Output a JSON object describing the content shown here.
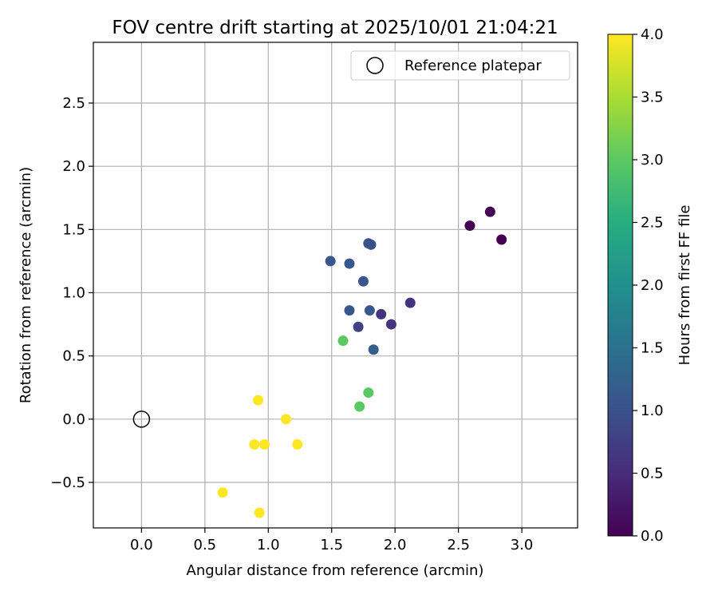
{
  "chart_data": {
    "type": "scatter",
    "title": "FOV centre drift starting at 2025/10/01 21:04:21",
    "xlabel": "Angular distance from reference (arcmin)",
    "ylabel": "Rotation from reference (arcmin)",
    "xlim": [
      -0.38,
      3.44
    ],
    "ylim": [
      -0.86,
      2.98
    ],
    "xticks": [
      0.0,
      0.5,
      1.0,
      1.5,
      2.0,
      2.5,
      3.0
    ],
    "xtick_labels": [
      "0.0",
      "0.5",
      "1.0",
      "1.5",
      "2.0",
      "2.5",
      "3.0"
    ],
    "yticks": [
      -0.5,
      0.0,
      0.5,
      1.0,
      1.5,
      2.0,
      2.5
    ],
    "ytick_labels": [
      "−0.5",
      "0.0",
      "0.5",
      "1.0",
      "1.5",
      "2.0",
      "2.5"
    ],
    "grid": true,
    "legend": {
      "position": "top-right",
      "entries": [
        {
          "label": "Reference platepar",
          "marker": "open-circle"
        }
      ]
    },
    "reference_point": {
      "x": 0.0,
      "y": 0.0
    },
    "colormap": "viridis",
    "colorbar": {
      "label": "Hours from first FF file",
      "range": [
        0.0,
        4.0
      ],
      "ticks": [
        0.0,
        0.5,
        1.0,
        1.5,
        2.0,
        2.5,
        3.0,
        3.5,
        4.0
      ],
      "tick_labels": [
        "0.0",
        "0.5",
        "1.0",
        "1.5",
        "2.0",
        "2.5",
        "3.0",
        "3.5",
        "4.0"
      ]
    },
    "points": [
      {
        "x": 2.75,
        "y": 1.64,
        "c": 0.0
      },
      {
        "x": 2.59,
        "y": 1.53,
        "c": 0.0
      },
      {
        "x": 2.84,
        "y": 1.42,
        "c": 0.0
      },
      {
        "x": 2.12,
        "y": 0.92,
        "c": 0.6
      },
      {
        "x": 1.89,
        "y": 0.83,
        "c": 0.6
      },
      {
        "x": 1.97,
        "y": 0.75,
        "c": 0.6
      },
      {
        "x": 1.71,
        "y": 0.73,
        "c": 0.8
      },
      {
        "x": 1.79,
        "y": 1.39,
        "c": 1.0
      },
      {
        "x": 1.81,
        "y": 1.38,
        "c": 1.0
      },
      {
        "x": 1.49,
        "y": 1.25,
        "c": 1.1
      },
      {
        "x": 1.64,
        "y": 1.23,
        "c": 1.1
      },
      {
        "x": 1.75,
        "y": 1.09,
        "c": 1.1
      },
      {
        "x": 1.64,
        "y": 0.86,
        "c": 1.1
      },
      {
        "x": 1.8,
        "y": 0.86,
        "c": 1.1
      },
      {
        "x": 1.83,
        "y": 0.55,
        "c": 1.2
      },
      {
        "x": 1.59,
        "y": 0.62,
        "c": 3.0
      },
      {
        "x": 1.79,
        "y": 0.21,
        "c": 3.0
      },
      {
        "x": 1.72,
        "y": 0.1,
        "c": 3.0
      },
      {
        "x": 0.92,
        "y": 0.15,
        "c": 4.0
      },
      {
        "x": 1.14,
        "y": 0.0,
        "c": 4.0
      },
      {
        "x": 0.89,
        "y": -0.2,
        "c": 4.0
      },
      {
        "x": 0.97,
        "y": -0.2,
        "c": 4.0
      },
      {
        "x": 1.23,
        "y": -0.2,
        "c": 4.0
      },
      {
        "x": 0.64,
        "y": -0.58,
        "c": 4.0
      },
      {
        "x": 0.93,
        "y": -0.74,
        "c": 4.0
      }
    ]
  }
}
